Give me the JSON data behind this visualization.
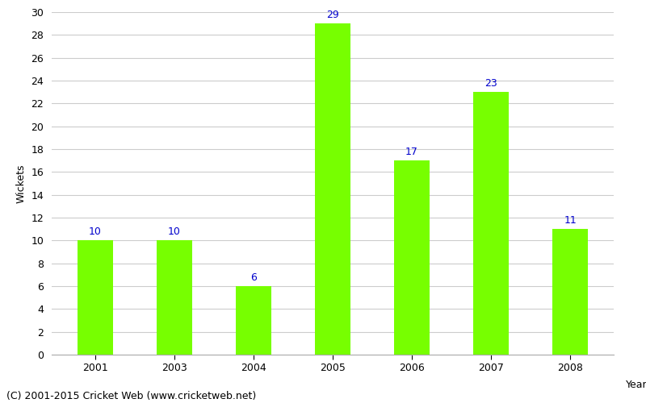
{
  "years": [
    "2001",
    "2003",
    "2004",
    "2005",
    "2006",
    "2007",
    "2008"
  ],
  "wickets": [
    10,
    10,
    6,
    29,
    17,
    23,
    11
  ],
  "bar_color": "#77ff00",
  "bar_edge_color": "#77ff00",
  "label_color": "#0000cc",
  "xlabel": "Year",
  "ylabel": "Wickets",
  "ylim": [
    0,
    30
  ],
  "ytick_step": 2,
  "caption": "(C) 2001-2015 Cricket Web (www.cricketweb.net)",
  "label_fontsize": 9,
  "axis_label_fontsize": 9,
  "tick_fontsize": 9,
  "caption_fontsize": 9,
  "background_color": "#ffffff",
  "grid_color": "#cccccc",
  "bar_width": 0.45
}
